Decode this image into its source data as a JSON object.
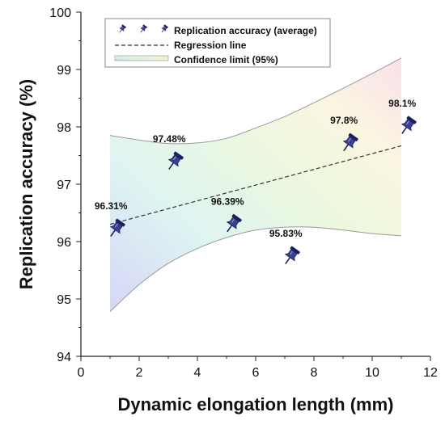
{
  "chart_data": {
    "type": "scatter",
    "title": "",
    "xlabel": "Dynamic elongation length (mm)",
    "ylabel": "Replication accuracy (%)",
    "xlim": [
      0,
      12
    ],
    "ylim": [
      94,
      100
    ],
    "x_ticks": [
      "0",
      "2",
      "4",
      "6",
      "8",
      "10",
      "12"
    ],
    "y_ticks": [
      "94",
      "95",
      "96",
      "97",
      "98",
      "99",
      "100"
    ],
    "grid": false,
    "legend_position": "top-left",
    "series": [
      {
        "name": "Replication accuracy (average)",
        "marker": "pushpin",
        "x": [
          1.2,
          3.2,
          5.2,
          7.2,
          9.2,
          11.2
        ],
        "y": [
          96.31,
          97.48,
          96.39,
          95.83,
          97.8,
          98.1
        ],
        "labels": [
          "96.31%",
          "97.48%",
          "96.39%",
          "95.83%",
          "97.8%",
          "98.1%"
        ]
      },
      {
        "name": "Regression line",
        "style": "dashed",
        "x": [
          1,
          11
        ],
        "y": [
          96.3,
          97.67
        ]
      },
      {
        "name": "Confidence limit (95%)",
        "style": "band",
        "x": [
          1,
          2,
          3,
          4,
          5,
          6,
          7,
          8,
          9,
          10,
          11
        ],
        "upper": [
          97.85,
          97.77,
          97.71,
          97.72,
          97.8,
          97.98,
          98.18,
          98.42,
          98.67,
          98.93,
          99.2
        ],
        "lower": [
          94.78,
          95.25,
          95.62,
          95.88,
          96.07,
          96.2,
          96.25,
          96.25,
          96.2,
          96.14,
          96.1
        ]
      }
    ]
  },
  "colors": {
    "marker_fill": "#3a3f8f",
    "marker_dark": "#1d2060",
    "regression": "#333333",
    "band_edge": "#9a9a9a",
    "axis": "#222222"
  }
}
